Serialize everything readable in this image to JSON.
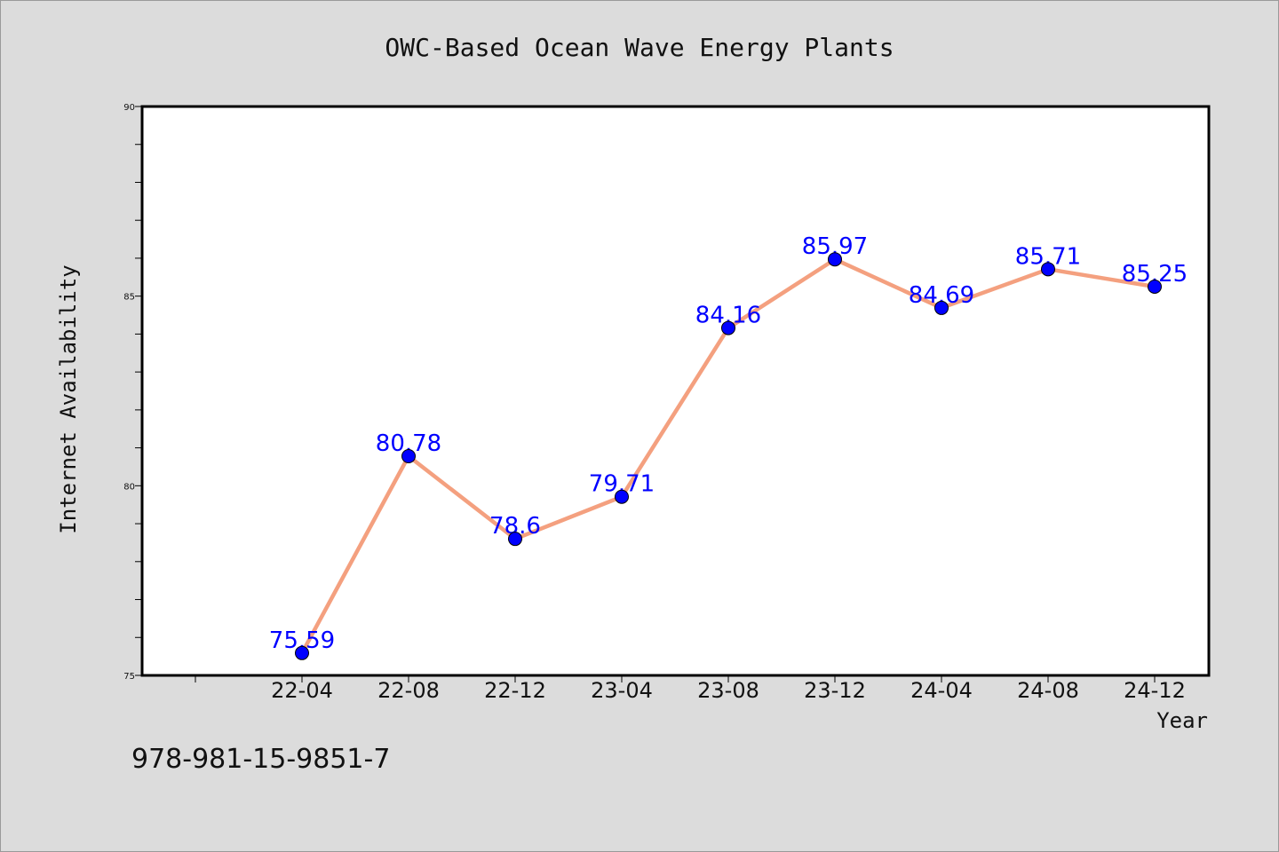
{
  "chart_data": {
    "type": "line",
    "title": "OWC-Based Ocean Wave Energy Plants",
    "xlabel": "Year",
    "ylabel": "Internet Availability",
    "categories": [
      "22-04",
      "22-08",
      "22-12",
      "23-04",
      "23-08",
      "23-12",
      "24-04",
      "24-08",
      "24-12"
    ],
    "series": [
      {
        "values": [
          75.59,
          80.78,
          78.6,
          79.71,
          84.16,
          85.97,
          84.69,
          85.71,
          85.25
        ]
      }
    ],
    "data_labels": [
      "75.59",
      "80.78",
      "78.6",
      "79.71",
      "84.16",
      "85.97",
      "84.69",
      "85.71",
      "85.25"
    ],
    "ylim": [
      75,
      90
    ],
    "yticks": [
      "75",
      "80",
      "85",
      "90"
    ],
    "grid": false,
    "line_color": "#f4a07f",
    "marker_color": "#0000ff",
    "label_color": "#0000ff"
  },
  "footer": "978-981-15-9851-7"
}
